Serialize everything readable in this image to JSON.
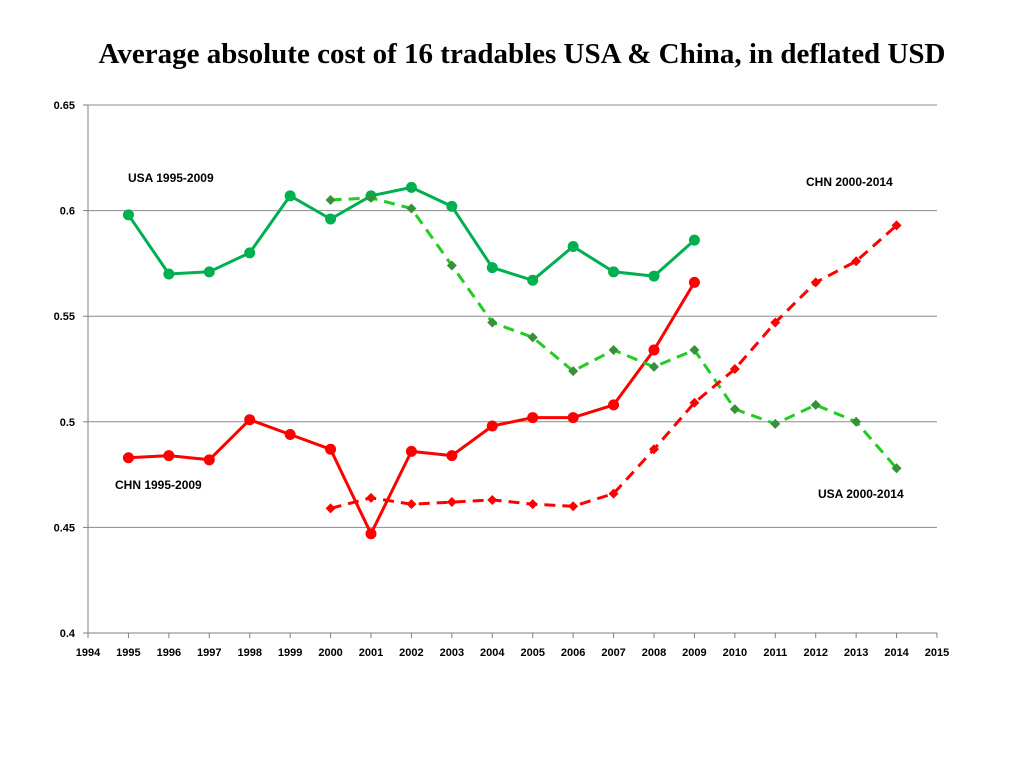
{
  "chart_data": {
    "type": "line",
    "title": "Average absolute cost of 16 tradables USA & China, in deflated USD",
    "xlabel": "",
    "ylabel": "",
    "xlim": [
      1994,
      2015
    ],
    "ylim": [
      0.4,
      0.65
    ],
    "x_ticks": [
      1994,
      1995,
      1996,
      1997,
      1998,
      1999,
      2000,
      2001,
      2002,
      2003,
      2004,
      2005,
      2006,
      2007,
      2008,
      2009,
      2010,
      2011,
      2012,
      2013,
      2014,
      2015
    ],
    "y_ticks": [
      "0.4",
      "0.45",
      "0.5",
      "0.55",
      "0.6",
      "0.65"
    ],
    "grid": "horizontal",
    "series": [
      {
        "name": "USA 1995-2009",
        "color": "#00b050",
        "style": "solid",
        "marker": "circle",
        "x": [
          1995,
          1996,
          1997,
          1998,
          1999,
          2000,
          2001,
          2002,
          2003,
          2004,
          2005,
          2006,
          2007,
          2008,
          2009
        ],
        "values": [
          0.598,
          0.57,
          0.571,
          0.58,
          0.607,
          0.596,
          0.607,
          0.611,
          0.602,
          0.573,
          0.567,
          0.583,
          0.571,
          0.569,
          0.586
        ]
      },
      {
        "name": "CHN 1995-2009",
        "color": "#ff0000",
        "style": "solid",
        "marker": "circle",
        "x": [
          1995,
          1996,
          1997,
          1998,
          1999,
          2000,
          2001,
          2002,
          2003,
          2004,
          2005,
          2006,
          2007,
          2008,
          2009
        ],
        "values": [
          0.483,
          0.484,
          0.482,
          0.501,
          0.494,
          0.487,
          0.447,
          0.486,
          0.484,
          0.498,
          0.502,
          0.502,
          0.508,
          0.534,
          0.566
        ]
      },
      {
        "name": "USA 2000-2014",
        "color": "#22cc22",
        "marker_color": "#3a8f3a",
        "style": "dashed",
        "marker": "diamond",
        "x": [
          2000,
          2001,
          2002,
          2003,
          2004,
          2005,
          2006,
          2007,
          2008,
          2009,
          2010,
          2011,
          2012,
          2013,
          2014
        ],
        "values": [
          0.605,
          0.606,
          0.601,
          0.574,
          0.547,
          0.54,
          0.524,
          0.534,
          0.526,
          0.534,
          0.506,
          0.499,
          0.508,
          0.5,
          0.478
        ]
      },
      {
        "name": "CHN 2000-2014",
        "color": "#ff0000",
        "style": "dashed",
        "marker": "diamond",
        "x": [
          2000,
          2001,
          2002,
          2003,
          2004,
          2005,
          2006,
          2007,
          2008,
          2009,
          2010,
          2011,
          2012,
          2013,
          2014
        ],
        "values": [
          0.459,
          0.464,
          0.461,
          0.462,
          0.463,
          0.461,
          0.46,
          0.466,
          0.487,
          0.509,
          0.525,
          0.547,
          0.566,
          0.576,
          0.593
        ]
      }
    ]
  }
}
